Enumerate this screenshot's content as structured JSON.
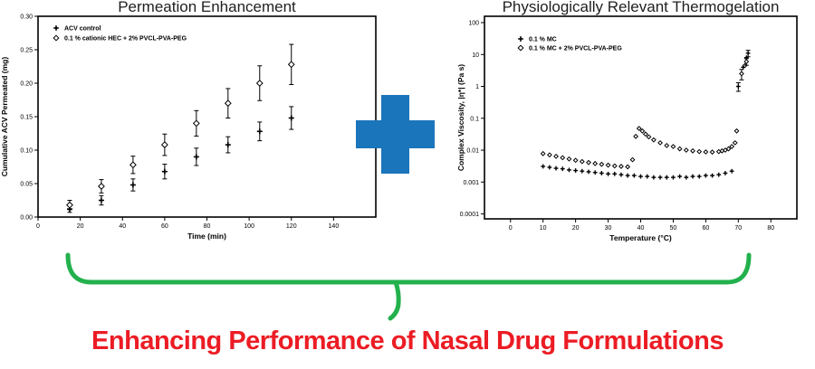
{
  "figure": {
    "caption": "Enhancing Performance of Nasal Drug Formulations",
    "plus_color": "#1B75BB",
    "brace_color": "#22B14C",
    "caption_color": "#EC1C24"
  },
  "chart_data": [
    {
      "type": "scatter",
      "title": "Permeation Enhancement",
      "xlabel": "Time (min)",
      "ylabel": "Cumulative ACV Permeated (mg)",
      "xlim": [
        0,
        160
      ],
      "ylim": [
        0,
        0.3
      ],
      "yscale": "linear",
      "grid": false,
      "legend_position": "top-left",
      "xticks": [
        0,
        20,
        40,
        60,
        80,
        100,
        120,
        140
      ],
      "xtick_labels": [
        "0",
        "20",
        "40",
        "60",
        "80",
        "100",
        "120",
        "140"
      ],
      "yticks": [
        0,
        0.05,
        0.1,
        0.15,
        0.2,
        0.25,
        0.3
      ],
      "ytick_labels": [
        "0.00",
        "0.05",
        "0.10",
        "0.15",
        "0.20",
        "0.25",
        "0.30"
      ],
      "series": [
        {
          "name": "ACV control",
          "marker": "plus",
          "size": 3,
          "stroke": 1.6,
          "x": [
            15,
            30,
            45,
            60,
            75,
            90,
            105,
            120
          ],
          "y": [
            0.012,
            0.025,
            0.048,
            0.068,
            0.09,
            0.108,
            0.128,
            0.148
          ],
          "err": [
            0.005,
            0.007,
            0.009,
            0.011,
            0.013,
            0.012,
            0.014,
            0.017
          ]
        },
        {
          "name": "0.1 % cationic HEC + 2% PVCL-PVA-PEG",
          "marker": "diamond-open",
          "size": 3.2,
          "stroke": 1,
          "x": [
            15,
            30,
            45,
            60,
            75,
            90,
            105,
            120
          ],
          "y": [
            0.018,
            0.046,
            0.078,
            0.108,
            0.14,
            0.17,
            0.2,
            0.228
          ],
          "err": [
            0.007,
            0.01,
            0.013,
            0.016,
            0.019,
            0.022,
            0.026,
            0.03
          ]
        }
      ]
    },
    {
      "type": "scatter",
      "title": "Physiologically Relevant Thermogelation",
      "xlabel": "Temperature (°C)",
      "ylabel": "Complex Viscosity, |η*| (Pa s)",
      "xlim": [
        -8,
        88
      ],
      "ylim": [
        7e-05,
        158
      ],
      "yscale": "log",
      "grid": false,
      "legend_position": "top-left",
      "xticks": [
        0,
        10,
        20,
        30,
        40,
        50,
        60,
        70,
        80
      ],
      "xtick_labels": [
        "0",
        "10",
        "20",
        "30",
        "40",
        "50",
        "60",
        "70",
        "80"
      ],
      "yticks": [
        100,
        10,
        1,
        0.1,
        0.01,
        0.001,
        0.0001
      ],
      "ytick_labels": [
        "100",
        "10",
        "1",
        "0.1",
        "0.01",
        "0.001",
        "0.0001"
      ],
      "series": [
        {
          "name": "0.1 % MC",
          "marker": "plus",
          "size": 2.4,
          "stroke": 1.4,
          "x": [
            10,
            12,
            14,
            16,
            18,
            20,
            22,
            24,
            26,
            28,
            30,
            32,
            34,
            36,
            38,
            40,
            42,
            44,
            46,
            48,
            50,
            52,
            54,
            56,
            58,
            60,
            62,
            64,
            66,
            68,
            70,
            71.5,
            72.5,
            73
          ],
          "y": [
            0.0031,
            0.0029,
            0.0027,
            0.0026,
            0.0024,
            0.0023,
            0.0022,
            0.0021,
            0.002,
            0.0019,
            0.0018,
            0.0018,
            0.0017,
            0.0016,
            0.0016,
            0.0015,
            0.0015,
            0.0014,
            0.0014,
            0.0014,
            0.0014,
            0.0015,
            0.0014,
            0.0015,
            0.0015,
            0.0016,
            0.0016,
            0.0017,
            0.0019,
            0.0022,
            1.0,
            4.0,
            8.0,
            11.0
          ],
          "err": [
            0,
            0,
            0,
            0,
            0,
            0,
            0,
            0,
            0,
            0,
            0,
            0,
            0,
            0,
            0,
            0,
            0,
            0,
            0,
            0,
            0,
            0,
            0,
            0,
            0,
            0,
            0,
            0,
            0,
            0,
            0.3,
            0,
            0,
            2.5
          ]
        },
        {
          "name": "0.1 % MC + 2% PVCL-PVA-PEG",
          "marker": "diamond-open",
          "size": 2.2,
          "stroke": 1,
          "x": [
            10,
            12,
            14,
            16,
            18,
            20,
            22,
            24,
            26,
            28,
            30,
            32,
            34,
            36,
            37.5,
            38.5,
            39.5,
            40.5,
            41.5,
            42.5,
            44,
            46,
            48,
            50,
            52,
            54,
            56,
            58,
            60,
            62,
            64,
            65,
            66,
            67,
            68,
            69,
            69.5,
            71,
            72,
            72.5
          ],
          "y": [
            0.0078,
            0.0071,
            0.0064,
            0.0058,
            0.0053,
            0.0048,
            0.0044,
            0.0041,
            0.0038,
            0.0036,
            0.0034,
            0.0032,
            0.0031,
            0.003,
            0.005,
            0.027,
            0.048,
            0.04,
            0.032,
            0.026,
            0.021,
            0.017,
            0.014,
            0.013,
            0.011,
            0.01,
            0.0095,
            0.009,
            0.0088,
            0.0087,
            0.009,
            0.0095,
            0.01,
            0.011,
            0.013,
            0.017,
            0.04,
            2.5,
            4.5,
            6.0
          ],
          "err": [
            0,
            0,
            0,
            0,
            0,
            0,
            0,
            0,
            0,
            0,
            0,
            0,
            0,
            0,
            0,
            0,
            0,
            0,
            0,
            0,
            0,
            0,
            0,
            0,
            0,
            0,
            0,
            0,
            0,
            0,
            0,
            0,
            0,
            0,
            0,
            0,
            0,
            0.9,
            0,
            1.4
          ]
        }
      ]
    }
  ]
}
